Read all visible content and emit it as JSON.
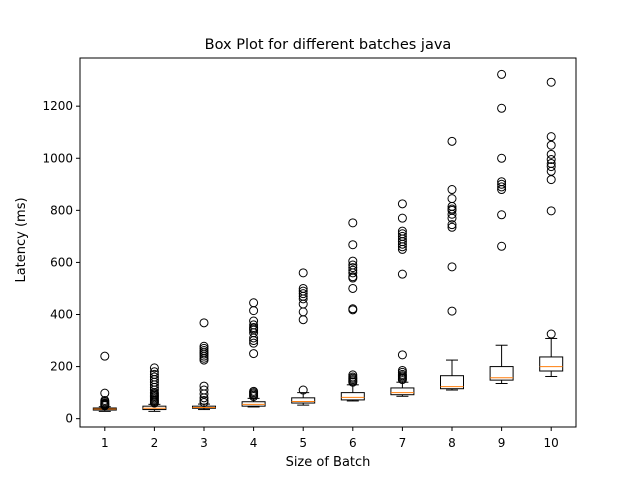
{
  "chart_data": {
    "type": "box",
    "title": "Box Plot for different batches java",
    "xlabel": "Size of Batch",
    "ylabel": "Latency (ms)",
    "ylim": [
      -32,
      1385
    ],
    "yticks": [
      0,
      200,
      400,
      600,
      800,
      1000,
      1200
    ],
    "categories": [
      "1",
      "2",
      "3",
      "4",
      "5",
      "6",
      "7",
      "8",
      "9",
      "10"
    ],
    "colors": {
      "box": "#000000",
      "median": "#ff7f0e",
      "flier": "#000000",
      "background": "#ffffff"
    },
    "boxes": [
      {
        "category": "1",
        "whisker_low": 28,
        "q1": 33,
        "median": 37,
        "q3": 41,
        "whisker_high": 46,
        "outliers": [
          240,
          98,
          70,
          65,
          60,
          57,
          55,
          52,
          50
        ]
      },
      {
        "category": "2",
        "whisker_low": 28,
        "q1": 35,
        "median": 40,
        "q3": 48,
        "whisker_high": 55,
        "outliers": [
          195,
          180,
          170,
          160,
          150,
          140,
          130,
          120,
          110,
          100,
          95,
          90,
          85,
          80,
          75,
          70,
          65,
          60
        ]
      },
      {
        "category": "3",
        "whisker_low": 35,
        "q1": 40,
        "median": 43,
        "q3": 48,
        "whisker_high": 56,
        "outliers": [
          368,
          278,
          270,
          262,
          255,
          248,
          240,
          232,
          225,
          125,
          110,
          95,
          80,
          70,
          62
        ]
      },
      {
        "category": "4",
        "whisker_low": 45,
        "q1": 48,
        "median": 55,
        "q3": 65,
        "whisker_high": 78,
        "outliers": [
          445,
          415,
          375,
          360,
          350,
          345,
          340,
          330,
          310,
          300,
          290,
          250,
          105,
          100,
          95,
          90,
          85
        ]
      },
      {
        "category": "5",
        "whisker_low": 52,
        "q1": 60,
        "median": 66,
        "q3": 80,
        "whisker_high": 100,
        "outliers": [
          560,
          500,
          490,
          480,
          470,
          460,
          440,
          410,
          380,
          110
        ]
      },
      {
        "category": "6",
        "whisker_low": 68,
        "q1": 72,
        "median": 82,
        "q3": 100,
        "whisker_high": 130,
        "outliers": [
          752,
          668,
          605,
          590,
          580,
          570,
          560,
          545,
          540,
          500,
          422,
          418,
          168,
          160,
          155,
          150,
          145,
          140
        ]
      },
      {
        "category": "7",
        "whisker_low": 86,
        "q1": 92,
        "median": 100,
        "q3": 118,
        "whisker_high": 140,
        "outliers": [
          825,
          770,
          720,
          710,
          700,
          690,
          680,
          670,
          660,
          650,
          555,
          245,
          185,
          178,
          170,
          165,
          160,
          155,
          150
        ]
      },
      {
        "category": "8",
        "whisker_low": 110,
        "q1": 115,
        "median": 123,
        "q3": 165,
        "whisker_high": 225,
        "outliers": [
          1065,
          880,
          845,
          815,
          805,
          800,
          785,
          770,
          745,
          735,
          583,
          413
        ]
      },
      {
        "category": "9",
        "whisker_low": 135,
        "q1": 148,
        "median": 157,
        "q3": 200,
        "whisker_high": 282,
        "outliers": [
          1322,
          1192,
          1000,
          910,
          900,
          890,
          880,
          783,
          662
        ]
      },
      {
        "category": "10",
        "whisker_low": 162,
        "q1": 183,
        "median": 200,
        "q3": 237,
        "whisker_high": 308,
        "outliers": [
          1292,
          1083,
          1050,
          1015,
          995,
          980,
          968,
          950,
          918,
          798,
          325
        ]
      }
    ]
  }
}
